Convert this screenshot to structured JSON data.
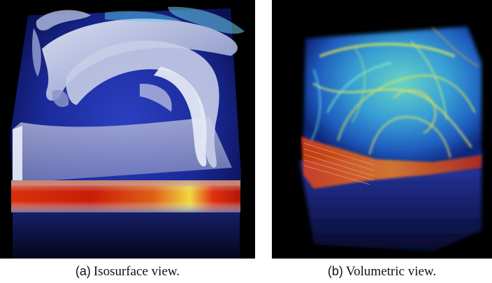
{
  "figure": {
    "panels": [
      {
        "id": "a",
        "tag": "(a)",
        "caption": "Isosurface view."
      },
      {
        "id": "b",
        "tag": "(b)",
        "caption": "Volumetric view."
      }
    ],
    "colors": {
      "background": "#000000",
      "volume_blue": "#1a2a9a",
      "isosurface": "#c8cde6",
      "hot_red": "#d8200a",
      "hot_yellow": "#f0e040",
      "flow_cyan": "#40d8e8",
      "flow_yellow": "#d8e850"
    }
  }
}
